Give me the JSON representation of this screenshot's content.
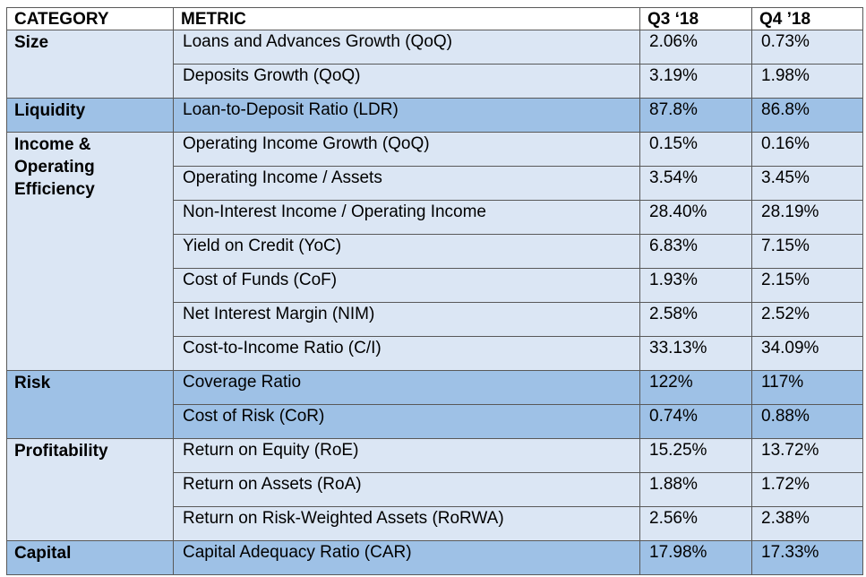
{
  "headers": [
    "CATEGORY",
    "METRIC",
    "Q3 ‘18",
    "Q4 ’18"
  ],
  "groups": [
    {
      "category": "Size",
      "shade": "light",
      "rows": [
        {
          "metric": "Loans and Advances Growth (QoQ)",
          "q3": "2.06%",
          "q4": "0.73%"
        },
        {
          "metric": "Deposits Growth (QoQ)",
          "q3": "3.19%",
          "q4": "1.98%"
        }
      ]
    },
    {
      "category": "Liquidity",
      "shade": "dark",
      "rows": [
        {
          "metric": "Loan-to-Deposit Ratio (LDR)",
          "q3": "87.8%",
          "q4": "86.8%"
        }
      ]
    },
    {
      "category": "Income & Operating Efficiency",
      "shade": "light",
      "rows": [
        {
          "metric": "Operating Income Growth (QoQ)",
          "q3": "0.15%",
          "q4": "0.16%"
        },
        {
          "metric": "Operating Income / Assets",
          "q3": "3.54%",
          "q4": "3.45%"
        },
        {
          "metric": "Non-Interest Income / Operating Income",
          "q3": "28.40%",
          "q4": "28.19%"
        },
        {
          "metric": "Yield on Credit (YoC)",
          "q3": "6.83%",
          "q4": "7.15%"
        },
        {
          "metric": "Cost of Funds (CoF)",
          "q3": "1.93%",
          "q4": "2.15%"
        },
        {
          "metric": "Net Interest Margin (NIM)",
          "q3": "2.58%",
          "q4": "2.52%"
        },
        {
          "metric": "Cost-to-Income Ratio (C/I)",
          "q3": "33.13%",
          "q4": "34.09%"
        }
      ]
    },
    {
      "category": "Risk",
      "shade": "dark",
      "rows": [
        {
          "metric": "Coverage Ratio",
          "q3": "122%",
          "q4": "117%"
        },
        {
          "metric": "Cost of Risk (CoR)",
          "q3": "0.74%",
          "q4": "0.88%"
        }
      ]
    },
    {
      "category": "Profitability",
      "shade": "light",
      "rows": [
        {
          "metric": "Return on Equity (RoE)",
          "q3": "15.25%",
          "q4": "13.72%"
        },
        {
          "metric": "Return on Assets (RoA)",
          "q3": "1.88%",
          "q4": "1.72%"
        },
        {
          "metric": "Return on Risk-Weighted Assets (RoRWA)",
          "q3": "2.56%",
          "q4": "2.38%"
        }
      ]
    },
    {
      "category": "Capital",
      "shade": "dark",
      "rows": [
        {
          "metric": "Capital Adequacy Ratio (CAR)",
          "q3": "17.98%",
          "q4": "17.33%"
        }
      ]
    }
  ],
  "colors": {
    "light_row": "#dbe6f4",
    "dark_row": "#9ec1e6",
    "border": "#595959"
  }
}
